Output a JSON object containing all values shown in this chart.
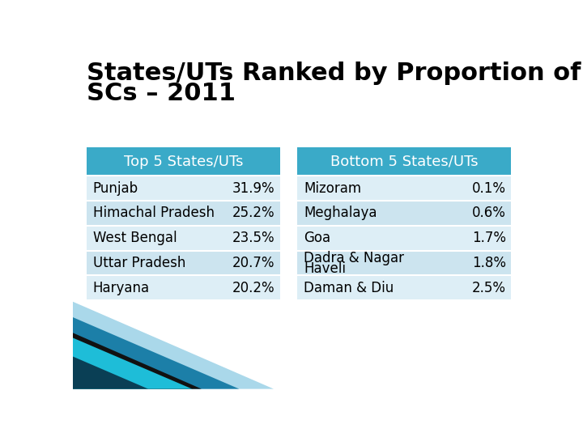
{
  "title_line1": "States/UTs Ranked by Proportion of",
  "title_line2": "SCs – 2011",
  "title_fontsize": 22,
  "title_fontweight": "bold",
  "title_color": "#000000",
  "header_bg_color": "#3aaac8",
  "header_text_color": "#ffffff",
  "header_left": "Top 5 States/UTs",
  "header_right": "Bottom 5 States/UTs",
  "row_bg_light": "#cce4ef",
  "row_bg_lighter": "#ddeef6",
  "row_text_color": "#000000",
  "top5": [
    [
      "Punjab",
      "31.9%"
    ],
    [
      "Himachal Pradesh",
      "25.2%"
    ],
    [
      "West Bengal",
      "23.5%"
    ],
    [
      "Uttar Pradesh",
      "20.7%"
    ],
    [
      "Haryana",
      "20.2%"
    ]
  ],
  "bottom5": [
    [
      "Mizoram",
      "0.1%"
    ],
    [
      "Meghalaya",
      "0.6%"
    ],
    [
      "Goa",
      "1.7%"
    ],
    [
      "Dadra & Nagar\nHaveli",
      "1.8%"
    ],
    [
      "Daman & Diu",
      "2.5%"
    ]
  ],
  "bg_color": "#ffffff",
  "table_font_size": 12,
  "header_font_size": 13
}
